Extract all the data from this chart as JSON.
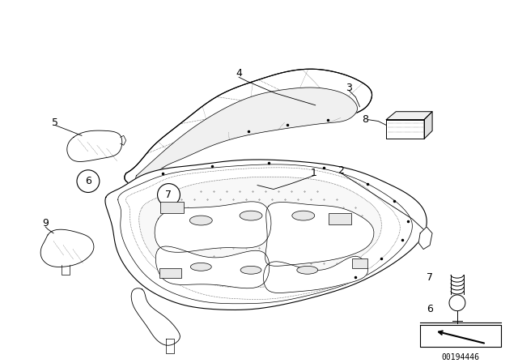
{
  "bg_color": "#ffffff",
  "line_color": "#000000",
  "fig_width": 6.4,
  "fig_height": 4.48,
  "dpi": 100,
  "part_number": "00194446"
}
